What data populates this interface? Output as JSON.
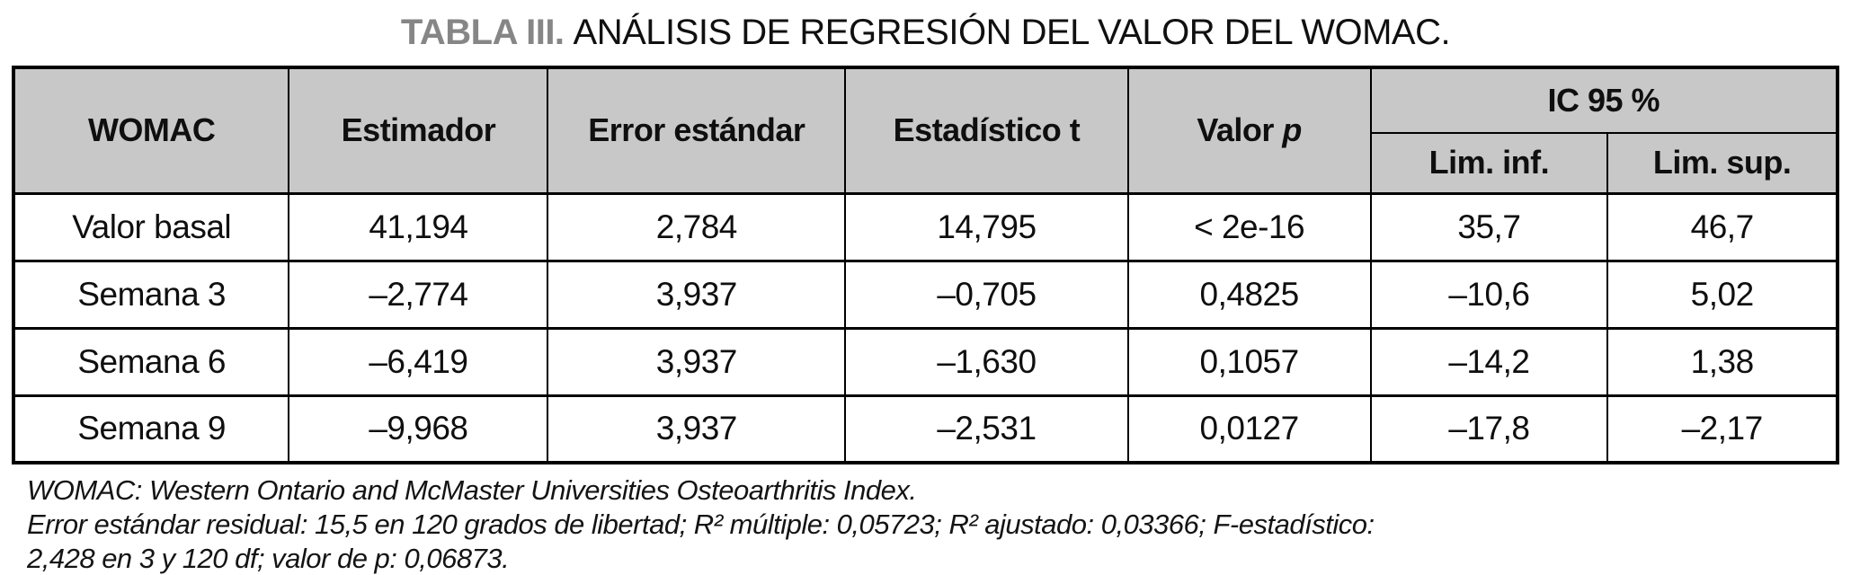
{
  "title": {
    "label": "TABLA III.",
    "text": "ANÁLISIS DE REGRESIÓN DEL VALOR DEL WOMAC."
  },
  "table": {
    "headers": {
      "womac": "WOMAC",
      "estimator": "Estimador",
      "std_error": "Error estándar",
      "t_statistic": "Estadístico t",
      "p_value_prefix": "Valor",
      "p_value_symbol": "p",
      "ic95": "IC 95 %",
      "lim_inf": "Lim. inf.",
      "lim_sup": "Lim. sup."
    },
    "rows": [
      {
        "label": "Valor basal",
        "estimator": "41,194",
        "std_error": "2,784",
        "t": "14,795",
        "p": "< 2e-16",
        "lim_inf": "35,7",
        "lim_sup": "46,7"
      },
      {
        "label": "Semana 3",
        "estimator": "–2,774",
        "std_error": "3,937",
        "t": "–0,705",
        "p": "0,4825",
        "lim_inf": "–10,6",
        "lim_sup": "5,02"
      },
      {
        "label": "Semana 6",
        "estimator": "–6,419",
        "std_error": "3,937",
        "t": "–1,630",
        "p": "0,1057",
        "lim_inf": "–14,2",
        "lim_sup": "1,38"
      },
      {
        "label": "Semana 9",
        "estimator": "–9,968",
        "std_error": "3,937",
        "t": "–2,531",
        "p": "0,0127",
        "lim_inf": "–17,8",
        "lim_sup": "–2,17"
      }
    ]
  },
  "footnotes": {
    "line1": "WOMAC: Western Ontario and McMaster Universities Osteoarthritis Index.",
    "line2": "Error estándar residual: 15,5 en 120 grados de libertad; R² múltiple: 0,05723; R² ajustado: 0,03366; F-estadístico:",
    "line3": "2,428 en 3 y 120 df; valor de p: 0,06873."
  },
  "colors": {
    "header_bg": "#c8c8c8",
    "title_accent": "#868686",
    "border": "#000000",
    "text": "#0f0f0f"
  }
}
